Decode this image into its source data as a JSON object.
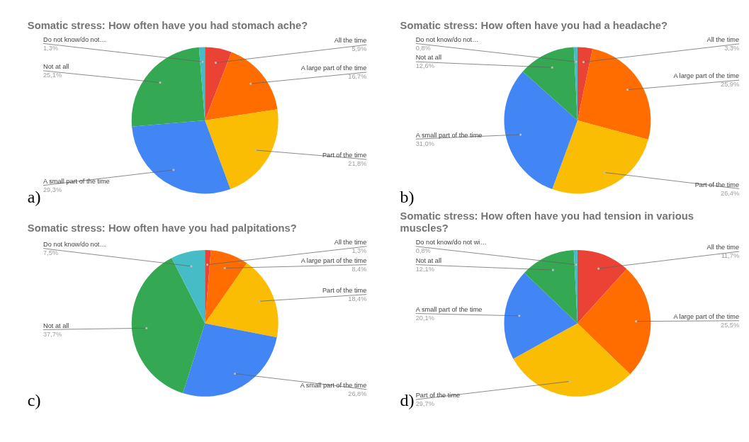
{
  "chart_data": [
    {
      "type": "pie",
      "title": "Somatic stress: How often have you had stomach ache?",
      "categories": [
        "All the time",
        "A large part of the time",
        "Part of the time",
        "A small part of the time",
        "Not at all",
        "Do not know/do not…"
      ],
      "values": [
        5.9,
        16.7,
        21.8,
        29.3,
        25.1,
        1.3
      ],
      "value_labels": [
        "5,9%",
        "16,7%",
        "21,8%",
        "29,3%",
        "25,1%",
        "1,3%"
      ],
      "colors": [
        "#ea4335",
        "#ff6d01",
        "#fbbc04",
        "#4285f4",
        "#34a853",
        "#46bdc6"
      ],
      "annotations": [
        "a)"
      ]
    },
    {
      "type": "pie",
      "title": "Somatic stress: How often have you had a headache?",
      "categories": [
        "All the time",
        "A large part of the time",
        "Part of the time",
        "A small part of the time",
        "Not at all",
        "Do not know/do not…"
      ],
      "values": [
        3.3,
        25.9,
        26.4,
        31.0,
        12.6,
        0.8
      ],
      "value_labels": [
        "3,3%",
        "25,9%",
        "26,4%",
        "31,0%",
        "12,6%",
        "0,8%"
      ],
      "colors": [
        "#ea4335",
        "#ff6d01",
        "#fbbc04",
        "#4285f4",
        "#34a853",
        "#46bdc6"
      ],
      "annotations": [
        "b)"
      ]
    },
    {
      "type": "pie",
      "title": "Somatic stress: How often have you had palpitations?",
      "categories": [
        "All the time",
        "A large part of the time",
        "Part of the time",
        "A small part of the time",
        "Not at all",
        "Do not know/do not…"
      ],
      "values": [
        1.3,
        8.4,
        18.4,
        26.8,
        37.7,
        7.5
      ],
      "value_labels": [
        "1,3%",
        "8,4%",
        "18,4%",
        "26,8%",
        "37,7%",
        "7,5%"
      ],
      "colors": [
        "#ea4335",
        "#ff6d01",
        "#fbbc04",
        "#4285f4",
        "#34a853",
        "#46bdc6"
      ],
      "annotations": [
        "c)"
      ]
    },
    {
      "type": "pie",
      "title": "Somatic stress: How often have you had tension in various muscles?",
      "categories": [
        "All the time",
        "A large part of the time",
        "Part of the time",
        "A small part of the time",
        "Not at all",
        "Do not know/do not wi…"
      ],
      "values": [
        11.7,
        25.5,
        29.7,
        20.1,
        12.1,
        0.8
      ],
      "value_labels": [
        "11,7%",
        "25,5%",
        "29,7%",
        "20,1%",
        "12,1%",
        "0,8%"
      ],
      "colors": [
        "#ea4335",
        "#ff6d01",
        "#fbbc04",
        "#4285f4",
        "#34a853",
        "#46bdc6"
      ],
      "annotations": [
        "d)"
      ]
    }
  ]
}
